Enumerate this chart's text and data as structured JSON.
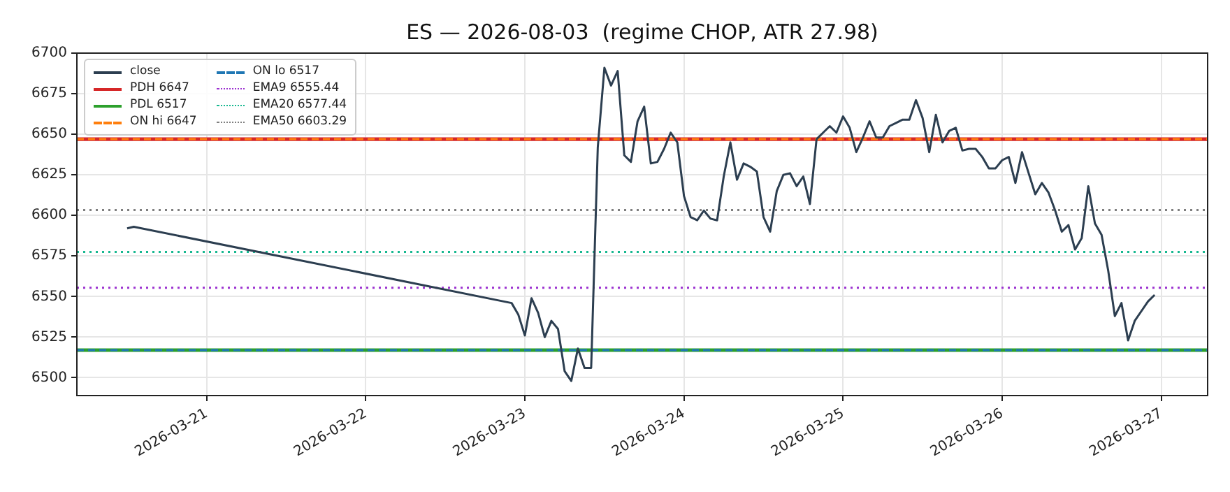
{
  "chart_data": {
    "type": "line",
    "title": "ES — 2026-08-03  (regime CHOP, ATR 27.98)",
    "xlim": [
      "2026-03-20T04:25",
      "2026-03-27T07:00"
    ],
    "xticks": [
      "2026-03-21",
      "2026-03-22",
      "2026-03-23",
      "2026-03-24",
      "2026-03-25",
      "2026-03-26",
      "2026-03-27"
    ],
    "ylim": [
      6489,
      6700
    ],
    "yticks": [
      6500,
      6525,
      6550,
      6575,
      6600,
      6625,
      6650,
      6675,
      6700
    ],
    "grid": true,
    "legend": "top left",
    "marker": "none",
    "series": [
      {
        "name": "close",
        "color": "#2c3e50",
        "line_style": "solid",
        "x": [
          "2026-03-20T12:00",
          "2026-03-20T13:00",
          "2026-03-22T22:00",
          "2026-03-22T23:00",
          "2026-03-23T00:00",
          "2026-03-23T01:00",
          "2026-03-23T02:00",
          "2026-03-23T03:00",
          "2026-03-23T04:00",
          "2026-03-23T05:00",
          "2026-03-23T06:00",
          "2026-03-23T07:00",
          "2026-03-23T08:00",
          "2026-03-23T09:00",
          "2026-03-23T10:00",
          "2026-03-23T11:00",
          "2026-03-23T12:00",
          "2026-03-23T13:00",
          "2026-03-23T14:00",
          "2026-03-23T15:00",
          "2026-03-23T16:00",
          "2026-03-23T17:00",
          "2026-03-23T18:00",
          "2026-03-23T19:00",
          "2026-03-23T20:00",
          "2026-03-23T21:00",
          "2026-03-23T22:00",
          "2026-03-23T23:00",
          "2026-03-24T00:00",
          "2026-03-24T01:00",
          "2026-03-24T02:00",
          "2026-03-24T03:00",
          "2026-03-24T04:00",
          "2026-03-24T05:00",
          "2026-03-24T06:00",
          "2026-03-24T07:00",
          "2026-03-24T08:00",
          "2026-03-24T09:00",
          "2026-03-24T10:00",
          "2026-03-24T11:00",
          "2026-03-24T12:00",
          "2026-03-24T13:00",
          "2026-03-24T14:00",
          "2026-03-24T15:00",
          "2026-03-24T16:00",
          "2026-03-24T17:00",
          "2026-03-24T18:00",
          "2026-03-24T19:00",
          "2026-03-24T20:00",
          "2026-03-24T21:00",
          "2026-03-24T22:00",
          "2026-03-24T23:00",
          "2026-03-25T00:00",
          "2026-03-25T01:00",
          "2026-03-25T02:00",
          "2026-03-25T03:00",
          "2026-03-25T04:00",
          "2026-03-25T05:00",
          "2026-03-25T06:00",
          "2026-03-25T07:00",
          "2026-03-25T08:00",
          "2026-03-25T09:00",
          "2026-03-25T10:00",
          "2026-03-25T11:00",
          "2026-03-25T12:00",
          "2026-03-25T13:00",
          "2026-03-25T14:00",
          "2026-03-25T15:00",
          "2026-03-25T16:00",
          "2026-03-25T17:00",
          "2026-03-25T18:00",
          "2026-03-25T19:00",
          "2026-03-25T20:00",
          "2026-03-25T21:00",
          "2026-03-25T22:00",
          "2026-03-25T23:00",
          "2026-03-26T00:00",
          "2026-03-26T01:00",
          "2026-03-26T02:00",
          "2026-03-26T03:00",
          "2026-03-26T04:00",
          "2026-03-26T05:00",
          "2026-03-26T06:00",
          "2026-03-26T07:00",
          "2026-03-26T08:00",
          "2026-03-26T09:00",
          "2026-03-26T10:00",
          "2026-03-26T11:00",
          "2026-03-26T12:00",
          "2026-03-26T13:00",
          "2026-03-26T14:00",
          "2026-03-26T15:00",
          "2026-03-26T16:00",
          "2026-03-26T17:00",
          "2026-03-26T18:00",
          "2026-03-26T19:00",
          "2026-03-26T20:00",
          "2026-03-26T21:00",
          "2026-03-26T22:00",
          "2026-03-26T23:00"
        ],
        "values": [
          6592,
          6593,
          6546,
          6539,
          6526,
          6549,
          6540,
          6525,
          6535,
          6530,
          6504,
          6498,
          6518,
          6506,
          6506,
          6642,
          6691,
          6680,
          6689,
          6637,
          6633,
          6658,
          6667,
          6632,
          6633,
          6641,
          6651,
          6645,
          6612,
          6599,
          6597,
          6603,
          6598,
          6597,
          6624,
          6645,
          6622,
          6632,
          6630,
          6627,
          6599,
          6590,
          6615,
          6625,
          6626,
          6618,
          6624,
          6607,
          6647,
          6651,
          6655,
          6651,
          6661,
          6654,
          6639,
          6648,
          6658,
          6648,
          6648,
          6655,
          6657,
          6659,
          6659,
          6671,
          6660,
          6639,
          6662,
          6645,
          6652,
          6654,
          6640,
          6641,
          6641,
          6636,
          6629,
          6629,
          6634,
          6636,
          6620,
          6639,
          6626,
          6613,
          6620,
          6614,
          6603,
          6590,
          6594,
          6579,
          6586,
          6618,
          6595,
          6588,
          6566,
          6538,
          6546,
          6523,
          6535,
          6541,
          6547,
          6551
        ]
      },
      {
        "name": "PDH 6647",
        "color": "#d62728",
        "line_style": "solid",
        "x": [
          "2026-03-20T04:25",
          "2026-03-27T07:00"
        ],
        "values": [
          6647,
          6647
        ]
      },
      {
        "name": "PDL 6517",
        "color": "#2ca02c",
        "line_style": "solid",
        "x": [
          "2026-03-20T04:25",
          "2026-03-27T07:00"
        ],
        "values": [
          6517,
          6517
        ]
      },
      {
        "name": "ON hi 6647",
        "color": "#ff7f0e",
        "line_style": "dashed",
        "x": [
          "2026-03-20T04:25",
          "2026-03-27T07:00"
        ],
        "values": [
          6647,
          6647
        ]
      },
      {
        "name": "ON lo 6517",
        "color": "#1f77b4",
        "line_style": "dashed",
        "x": [
          "2026-03-20T04:25",
          "2026-03-27T07:00"
        ],
        "values": [
          6517,
          6517
        ]
      },
      {
        "name": "EMA9 6555.44",
        "color": "#9b30d0",
        "line_style": "dotted",
        "x": [
          "2026-03-20T04:25",
          "2026-03-27T07:00"
        ],
        "values": [
          6555.44,
          6555.44
        ]
      },
      {
        "name": "EMA20 6577.44",
        "color": "#17b890",
        "line_style": "dotted",
        "x": [
          "2026-03-20T04:25",
          "2026-03-27T07:00"
        ],
        "values": [
          6577.44,
          6577.44
        ]
      },
      {
        "name": "EMA50 6603.29",
        "color": "#7f7f7f",
        "line_style": "dotted",
        "x": [
          "2026-03-20T04:25",
          "2026-03-27T07:00"
        ],
        "values": [
          6603.29,
          6603.29
        ]
      }
    ]
  }
}
